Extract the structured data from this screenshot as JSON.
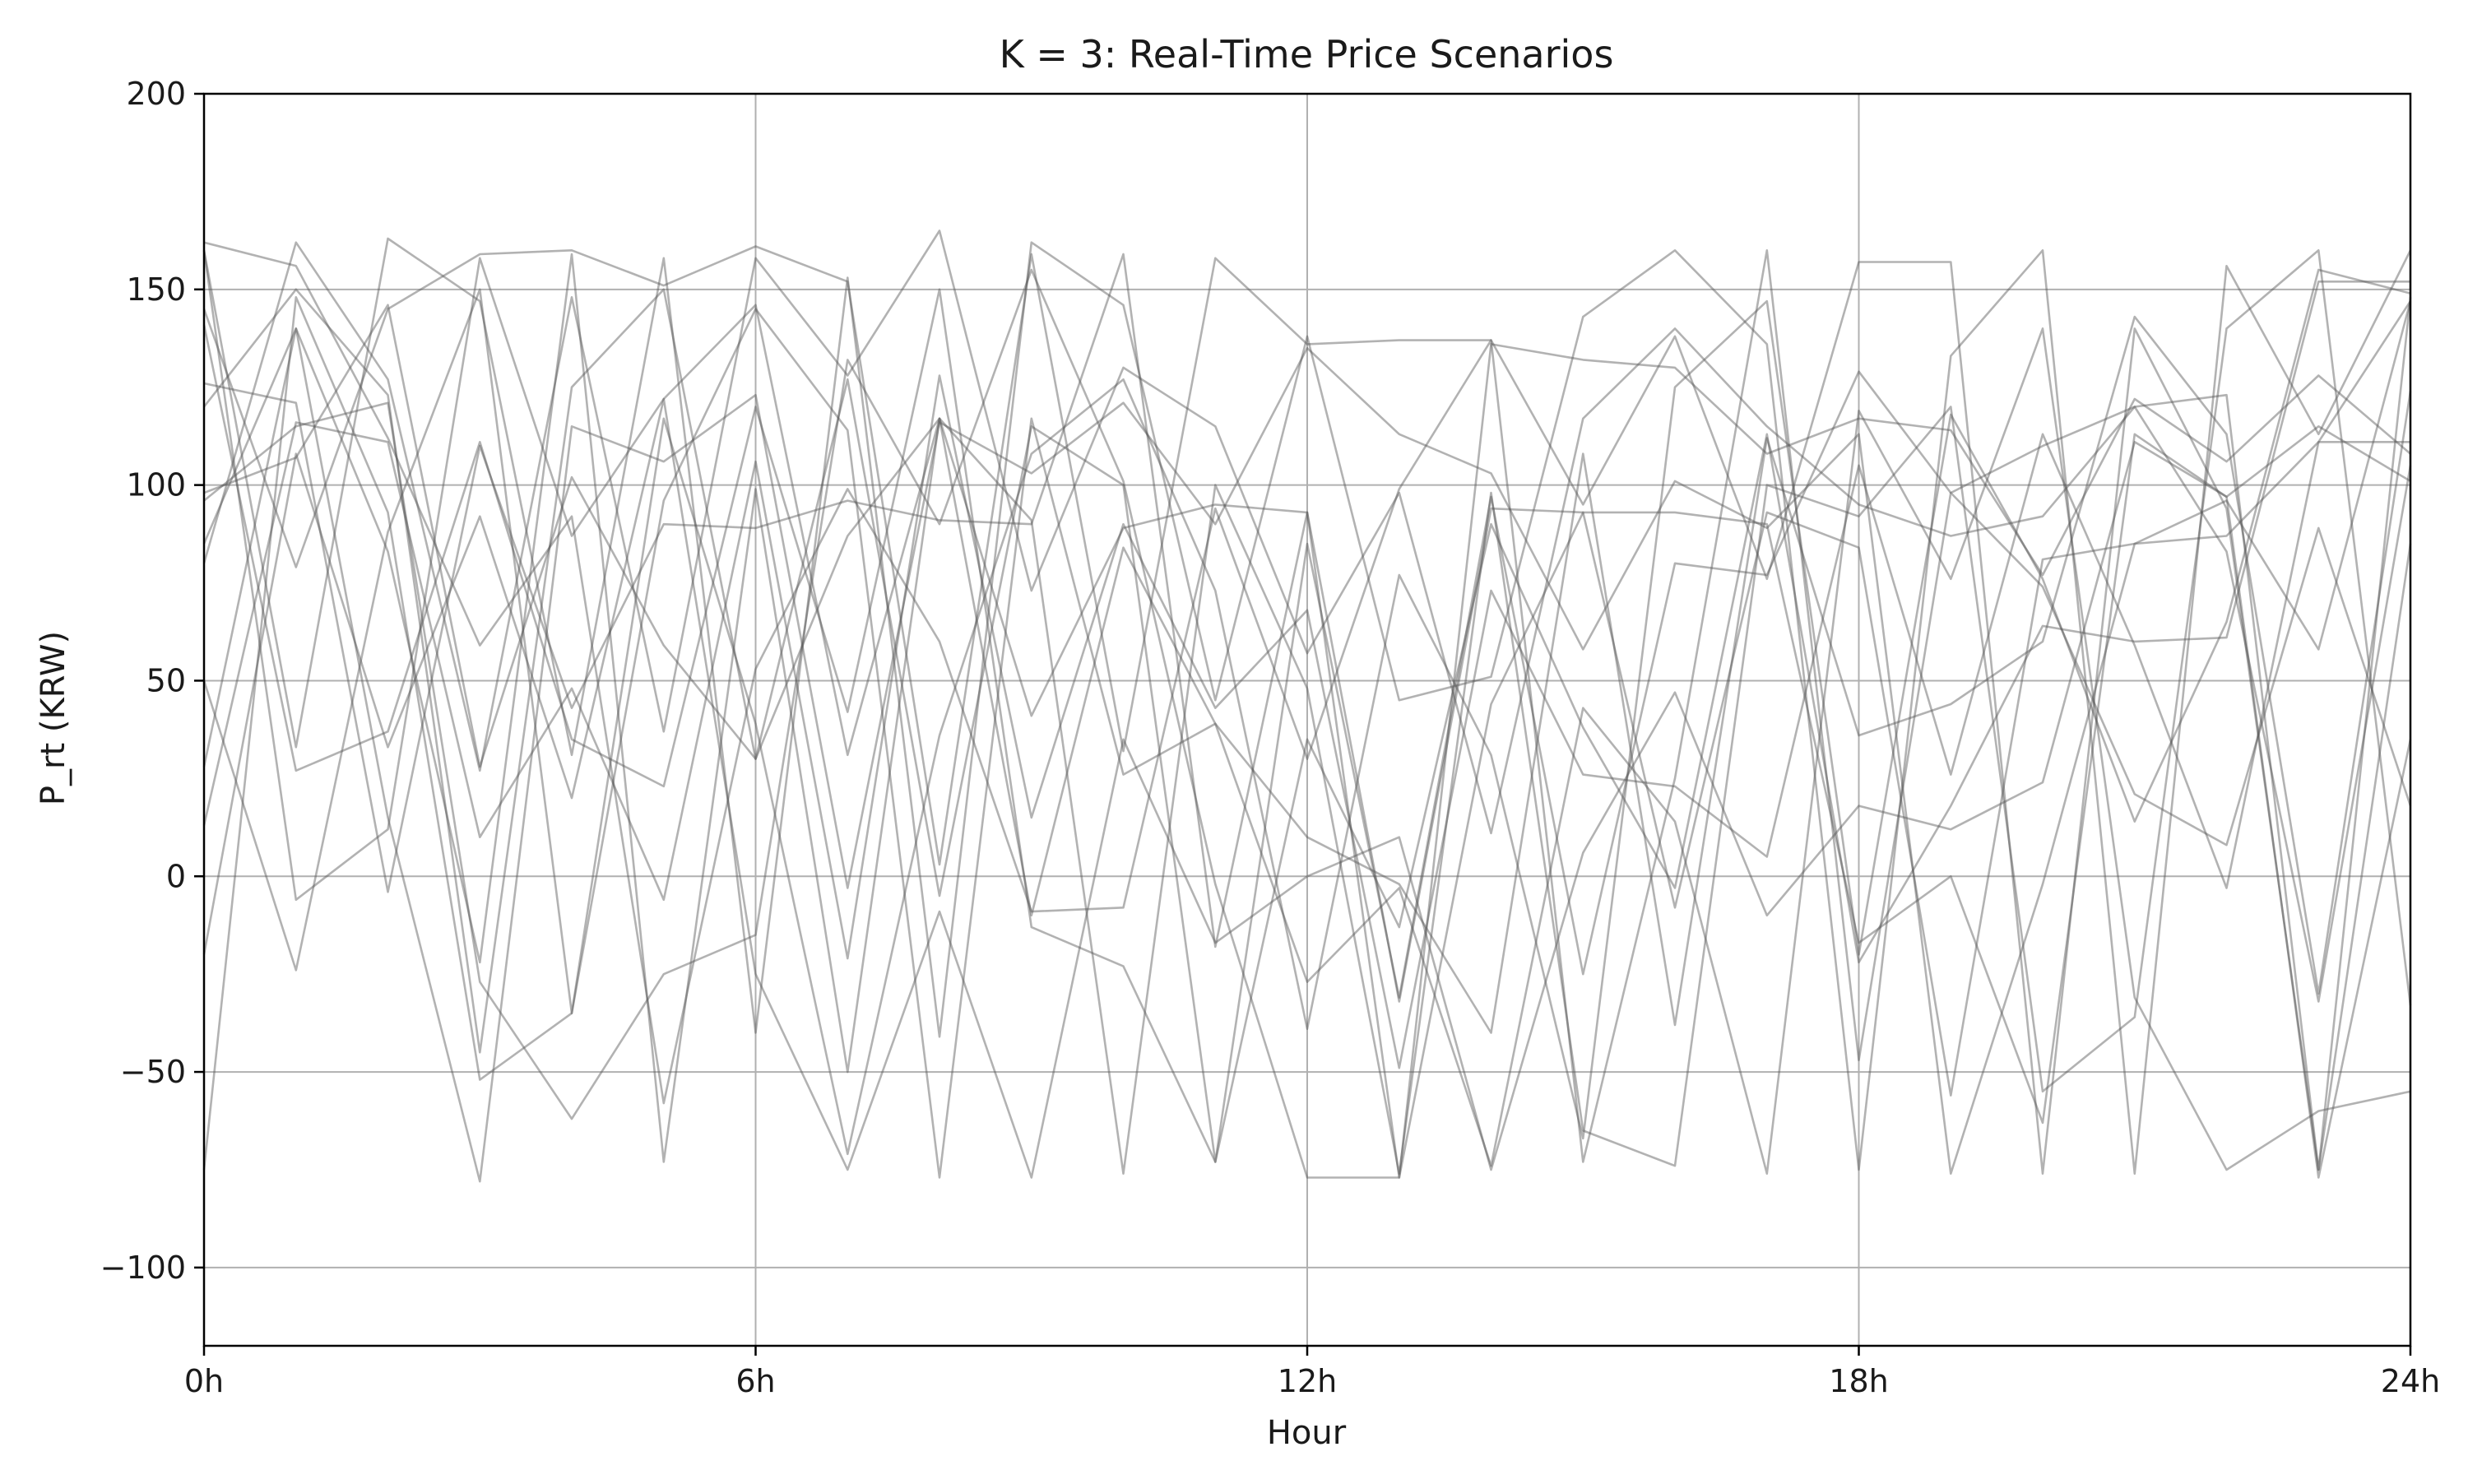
{
  "chart_data": {
    "type": "line",
    "title": "K = 3: Real-Time Price Scenarios",
    "xlabel": "Hour",
    "ylabel": "P_rt (KRW)",
    "xlim": [
      0,
      24
    ],
    "ylim": [
      -120,
      200
    ],
    "x_ticks": [
      {
        "value": 0,
        "label": "0h"
      },
      {
        "value": 6,
        "label": "6h"
      },
      {
        "value": 12,
        "label": "12h"
      },
      {
        "value": 18,
        "label": "18h"
      },
      {
        "value": 24,
        "label": "24h"
      }
    ],
    "y_ticks": [
      {
        "value": -100,
        "label": "−100"
      },
      {
        "value": -50,
        "label": "−50"
      },
      {
        "value": 0,
        "label": "0"
      },
      {
        "value": 50,
        "label": "50"
      },
      {
        "value": 100,
        "label": "100"
      },
      {
        "value": 150,
        "label": "150"
      },
      {
        "value": 200,
        "label": "200"
      }
    ],
    "grid": true,
    "line_color": "#555555",
    "line_opacity": 0.45,
    "x": [
      0,
      1,
      2,
      3,
      4,
      5,
      6,
      7,
      8,
      9,
      10,
      11,
      12,
      13,
      14,
      15,
      16,
      17,
      18,
      19,
      20,
      21,
      22,
      23,
      24
    ],
    "series": [
      {
        "values": [
          160,
          33,
          163,
          147,
          31,
          158,
          -40,
          153,
          -41,
          162,
          146,
          45,
          138,
          45,
          51,
          143,
          160,
          136,
          -75,
          133,
          160,
          -76,
          156,
          113,
          160
        ]
      },
      {
        "values": [
          145,
          79,
          145,
          159,
          160,
          151,
          161,
          152,
          3,
          159,
          32,
          158,
          136,
          137,
          137,
          95,
          138,
          76,
          157,
          157,
          -76,
          140,
          94,
          -75,
          148
        ]
      },
      {
        "values": [
          126,
          121,
          -4,
          110,
          43,
          90,
          89,
          96,
          91,
          90,
          159,
          -18,
          93,
          -32,
          94,
          93,
          -8,
          93,
          84,
          -56,
          81,
          85,
          96,
          58,
          147
        ]
      },
      {
        "values": [
          120,
          150,
          123,
          -45,
          125,
          150,
          30,
          127,
          -5,
          115,
          100,
          -73,
          85,
          -31,
          97,
          -25,
          80,
          77,
          129,
          98,
          110,
          120,
          83,
          -32,
          105
        ]
      },
      {
        "values": [
          80,
          162,
          127,
          27,
          148,
          37,
          158,
          128,
          165,
          73,
          130,
          115,
          57,
          98,
          11,
          117,
          140,
          115,
          95,
          87,
          92,
          120,
          123,
          -75,
          85
        ]
      },
      {
        "values": [
          160,
          -6,
          12,
          158,
          87,
          122,
          146,
          31,
          117,
          41,
          89,
          95,
          93,
          -77,
          44,
          93,
          93,
          90,
          -17,
          0,
          -63,
          113,
          97,
          115,
          101
        ]
      },
      {
        "values": [
          141,
          27,
          37,
          111,
          35,
          23,
          120,
          42,
          150,
          -13,
          -23,
          -73,
          35,
          -13,
          90,
          38,
          -3,
          113,
          -22,
          18,
          64,
          60,
          61,
          152,
          152
        ]
      },
      {
        "values": [
          96,
          115,
          121,
          -27,
          -62,
          -25,
          -15,
          132,
          90,
          155,
          101,
          -2,
          -77,
          -77,
          136,
          132,
          130,
          108,
          117,
          114,
          77,
          122,
          106,
          128,
          108
        ]
      },
      {
        "values": [
          85,
          140,
          15,
          -78,
          115,
          106,
          123,
          -3,
          116,
          103,
          121,
          90,
          135,
          113,
          103,
          58,
          101,
          89,
          113,
          -76,
          -2,
          85,
          87,
          111,
          111
        ]
      },
      {
        "values": [
          -75,
          148,
          93,
          -52,
          -35,
          96,
          145,
          114,
          -77,
          117,
          26,
          39,
          10,
          -2,
          -40,
          108,
          -38,
          112,
          36,
          44,
          60,
          143,
          113,
          -30,
          124
        ]
      },
      {
        "values": [
          98,
          107,
          146,
          28,
          102,
          59,
          30,
          87,
          117,
          -10,
          84,
          39,
          -27,
          -3,
          -74,
          43,
          14,
          -76,
          119,
          76,
          140,
          -31,
          -75,
          -60,
          -55
        ]
      },
      {
        "values": [
          162,
          156,
          112,
          59,
          92,
          -58,
          53,
          99,
          60,
          -9,
          -8,
          94,
          30,
          99,
          137,
          -73,
          25,
          160,
          -47,
          98,
          74,
          21,
          8,
          89,
          18
        ]
      },
      {
        "values": [
          -20,
          108,
          33,
          92,
          20,
          122,
          -25,
          -75,
          -9,
          -77,
          35,
          -17,
          0,
          10,
          -75,
          6,
          47,
          -10,
          18,
          12,
          24,
          111,
          97,
          -77,
          35
        ]
      },
      {
        "values": [
          28,
          140,
          83,
          -22,
          159,
          -73,
          99,
          -50,
          117,
          91,
          -76,
          100,
          48,
          -76,
          98,
          -65,
          -74,
          100,
          92,
          120,
          -55,
          -36,
          140,
          160,
          -33
        ]
      },
      {
        "values": [
          13,
          116,
          111,
          10,
          48,
          -6,
          106,
          -21,
          128,
          15,
          90,
          43,
          68,
          -49,
          73,
          26,
          23,
          5,
          105,
          26,
          113,
          59,
          -3,
          111,
          147
        ]
      },
      {
        "values": [
          50,
          -24,
          88,
          150,
          -35,
          117,
          39,
          -71,
          36,
          108,
          127,
          73,
          -39,
          77,
          31,
          -67,
          125,
          147,
          -20,
          118,
          76,
          14,
          65,
          155,
          149
        ]
      }
    ]
  }
}
